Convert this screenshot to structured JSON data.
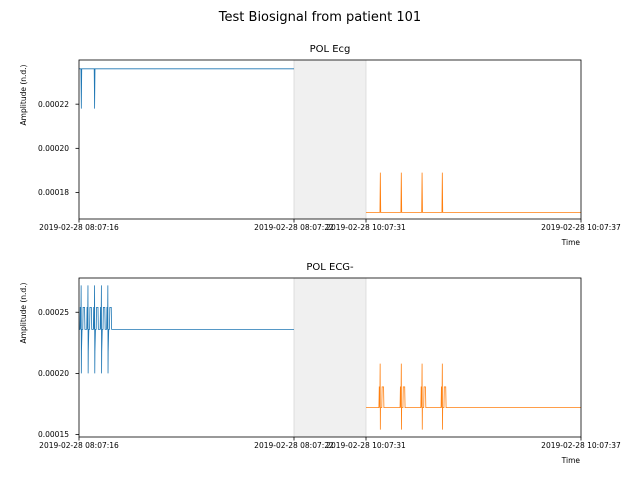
{
  "figure": {
    "title": "Test Biosignal from patient 101"
  },
  "chart_data": [
    {
      "type": "line",
      "title": "POL Ecg",
      "xlabel": "Time",
      "ylabel": "Amplitude (n.d.)",
      "ylim": [
        0.000168,
        0.00024
      ],
      "yticks": [
        "0.00018",
        "0.00020",
        "0.00022"
      ],
      "ytick_values": [
        0.00018,
        0.0002,
        0.00022
      ],
      "xticks": [
        "2019-02-28 08:07:16",
        "2019-02-28 08:07:22",
        "2019-02-28 10:07:31",
        "2019-02-28 10:07:37"
      ],
      "gap_shaded": true,
      "series": [
        {
          "color": "#1f77b4",
          "segment": "first",
          "baseline": 0.000236,
          "spikes": [
            {
              "t": 0.065,
              "y": 0.000218
            },
            {
              "t": 0.435,
              "y": 0.000218
            }
          ]
        },
        {
          "color": "#ff7f0e",
          "segment": "second",
          "baseline": 0.000171,
          "spikes": [
            {
              "t": 0.4,
              "y": 0.000189
            },
            {
              "t": 0.985,
              "y": 0.000189
            },
            {
              "t": 1.565,
              "y": 0.000189
            },
            {
              "t": 2.13,
              "y": 0.000189
            }
          ]
        }
      ]
    },
    {
      "type": "line",
      "title": "POL  ECG-",
      "xlabel": "Time",
      "ylabel": "Amplitude (n.d.)",
      "ylim": [
        0.000148,
        0.000278
      ],
      "yticks": [
        "0.00015",
        "0.00020",
        "0.00025"
      ],
      "ytick_values": [
        0.00015,
        0.0002,
        0.00025
      ],
      "xticks": [
        "2019-02-28 08:07:16",
        "2019-02-28 08:07:22",
        "2019-02-28 10:07:31",
        "2019-02-28 10:07:37"
      ],
      "gap_shaded": true,
      "series": [
        {
          "color": "#1f77b4",
          "segment": "first",
          "baseline": 0.000236,
          "beats": [
            0.065,
            0.255,
            0.44,
            0.63,
            0.81
          ],
          "beat_shape": {
            "hump": 0.000254,
            "peak": 0.000272,
            "trough": 0.0002,
            "dip": 0.000218
          }
        },
        {
          "color": "#ff7f0e",
          "segment": "second",
          "baseline": 0.000172,
          "beats": [
            0.4,
            0.99,
            1.57,
            2.135
          ],
          "beat_shape": {
            "hump": 0.000189,
            "peak": 0.000208,
            "trough": 0.000154,
            "dip": 0.000172
          }
        }
      ]
    }
  ]
}
